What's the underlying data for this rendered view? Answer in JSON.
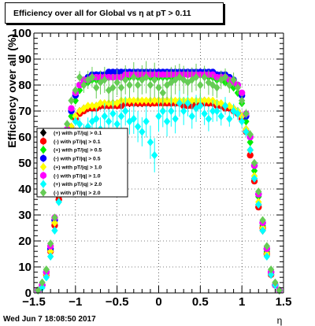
{
  "title": "Efficiency over all for Global vs   η at pT > 0.11",
  "timestamp": "Wed Jun  7 18:08:50 2017",
  "chart_data": {
    "type": "scatter",
    "title": "Efficiency over all for Global vs   η at pT > 0.11",
    "xlabel": "η",
    "ylabel": "Efficiency over all (%)",
    "xlim": [
      -1.5,
      1.5
    ],
    "ylim": [
      0,
      100
    ],
    "xticks": [
      -1.5,
      -1,
      -0.5,
      0,
      0.5,
      1,
      1.5
    ],
    "xtick_labels": [
      "−1.5",
      "−1",
      "−0.5",
      "0",
      "0.5",
      "1",
      "1.5"
    ],
    "yticks": [
      0,
      10,
      20,
      30,
      40,
      50,
      60,
      70,
      80,
      90,
      100
    ],
    "grid": true,
    "legend_position": "left",
    "x": [
      -1.45,
      -1.4,
      -1.35,
      -1.3,
      -1.25,
      -1.2,
      -1.15,
      -1.1,
      -1.05,
      -1.0,
      -0.95,
      -0.9,
      -0.85,
      -0.8,
      -0.75,
      -0.7,
      -0.65,
      -0.6,
      -0.55,
      -0.5,
      -0.45,
      -0.4,
      -0.35,
      -0.3,
      -0.25,
      -0.2,
      -0.15,
      -0.1,
      -0.05,
      0.0,
      0.05,
      0.1,
      0.15,
      0.2,
      0.25,
      0.3,
      0.35,
      0.4,
      0.45,
      0.5,
      0.55,
      0.6,
      0.65,
      0.7,
      0.75,
      0.8,
      0.85,
      0.9,
      0.95,
      1.0,
      1.05,
      1.1,
      1.15,
      1.2,
      1.25,
      1.3,
      1.35,
      1.4,
      1.45
    ],
    "series": [
      {
        "name": "(+) with pT/|q| > 0.1",
        "color": "#000000",
        "shape": "diamond",
        "values": [
          1,
          3,
          7,
          16,
          27,
          37,
          47,
          57,
          64,
          68,
          70,
          71,
          71,
          71,
          72,
          72,
          72,
          72,
          73,
          73,
          73,
          73,
          73,
          73,
          73,
          73,
          73,
          73,
          74,
          74,
          74,
          74,
          73,
          73,
          73,
          73,
          73,
          73,
          73,
          74,
          74,
          73,
          73,
          73,
          72,
          72,
          71,
          71,
          70,
          68,
          63,
          55,
          44,
          34,
          24,
          15,
          7,
          3,
          1
        ]
      },
      {
        "name": "(-) with pT/|q| > 0.1",
        "color": "#ff0000",
        "shape": "circle",
        "values": [
          1,
          3,
          7,
          16,
          26,
          36,
          46,
          56,
          63,
          67,
          69,
          70,
          71,
          71,
          71,
          72,
          72,
          72,
          72,
          72,
          72,
          73,
          73,
          73,
          73,
          73,
          73,
          73,
          73,
          73,
          73,
          73,
          73,
          73,
          73,
          72,
          72,
          72,
          72,
          73,
          73,
          73,
          73,
          72,
          72,
          71,
          71,
          70,
          69,
          67,
          62,
          53,
          43,
          33,
          25,
          15,
          7,
          3,
          1
        ]
      },
      {
        "name": "(+) with pT/|q| > 0.5",
        "color": "#00ee00",
        "shape": "diamond",
        "values": [
          1,
          3,
          8,
          17,
          28,
          39,
          50,
          61,
          68,
          74,
          78,
          80,
          81,
          82,
          82,
          82,
          83,
          83,
          83,
          83,
          83,
          83,
          83,
          83,
          83,
          83,
          83,
          83,
          83,
          83,
          83,
          83,
          83,
          84,
          84,
          84,
          84,
          84,
          84,
          84,
          84,
          83,
          83,
          82,
          82,
          81,
          80,
          79,
          77,
          73,
          66,
          58,
          47,
          37,
          26,
          16,
          8,
          3,
          1
        ]
      },
      {
        "name": "(-) with pT/|q| > 0.5",
        "color": "#0000ff",
        "shape": "circle",
        "values": [
          1,
          3,
          8,
          17,
          28,
          40,
          51,
          62,
          70,
          76,
          80,
          82,
          83,
          84,
          84,
          84,
          84,
          85,
          85,
          85,
          85,
          85,
          85,
          85,
          85,
          85,
          85,
          85,
          85,
          85,
          85,
          85,
          85,
          85,
          85,
          85,
          85,
          85,
          85,
          85,
          85,
          85,
          85,
          84,
          84,
          84,
          83,
          82,
          80,
          76,
          68,
          60,
          49,
          38,
          27,
          17,
          8,
          3,
          1
        ]
      },
      {
        "name": "(+) with pT/|q| > 1.0",
        "color": "#ffff00",
        "shape": "diamond",
        "values": [
          1,
          3,
          7,
          16,
          27,
          38,
          48,
          58,
          64,
          68,
          70,
          71,
          72,
          72,
          72,
          73,
          73,
          73,
          73,
          73,
          74,
          74,
          74,
          74,
          74,
          74,
          74,
          74,
          74,
          74,
          74,
          74,
          74,
          74,
          74,
          74,
          74,
          74,
          74,
          74,
          74,
          74,
          74,
          73,
          73,
          72,
          72,
          71,
          70,
          68,
          63,
          55,
          45,
          35,
          25,
          15,
          7,
          3,
          1
        ]
      },
      {
        "name": "(-) with pT/|q| > 1.0",
        "color": "#ff00ff",
        "shape": "circle",
        "values": [
          1,
          3,
          8,
          18,
          29,
          40,
          52,
          63,
          71,
          77,
          80,
          82,
          82,
          83,
          83,
          83,
          83,
          83,
          83,
          83,
          83,
          84,
          84,
          84,
          84,
          84,
          84,
          84,
          84,
          84,
          84,
          84,
          84,
          84,
          84,
          84,
          84,
          84,
          84,
          84,
          84,
          84,
          84,
          83,
          83,
          83,
          82,
          81,
          80,
          77,
          69,
          60,
          49,
          38,
          27,
          17,
          8,
          3,
          1
        ]
      },
      {
        "name": "(+) with pT/|q| > 2.0",
        "color": "#00ffff",
        "shape": "diamond",
        "values": [
          1,
          2,
          6,
          14,
          24,
          35,
          45,
          55,
          62,
          66,
          65,
          62,
          64,
          66,
          67,
          63,
          68,
          66,
          69,
          65,
          68,
          70,
          66,
          67,
          64,
          62,
          66,
          58,
          53,
          68,
          70,
          66,
          70,
          67,
          73,
          70,
          73,
          68,
          71,
          72,
          69,
          67,
          70,
          70,
          68,
          72,
          67,
          70,
          69,
          66,
          62,
          55,
          44,
          34,
          24,
          14,
          7,
          3,
          1
        ]
      },
      {
        "name": "(-) with pT/|q| > 2.0",
        "color": "#66cc55",
        "shape": "diamond",
        "values": [
          1,
          4,
          9,
          19,
          29,
          42,
          55,
          65,
          74,
          78,
          83,
          80,
          82,
          83,
          79,
          81,
          82,
          78,
          79,
          81,
          79,
          82,
          80,
          83,
          80,
          82,
          83,
          80,
          82,
          79,
          77,
          80,
          81,
          82,
          83,
          82,
          81,
          82,
          83,
          80,
          83,
          81,
          80,
          79,
          82,
          83,
          80,
          82,
          79,
          74,
          69,
          61,
          50,
          39,
          28,
          18,
          9,
          4,
          1
        ]
      }
    ]
  }
}
